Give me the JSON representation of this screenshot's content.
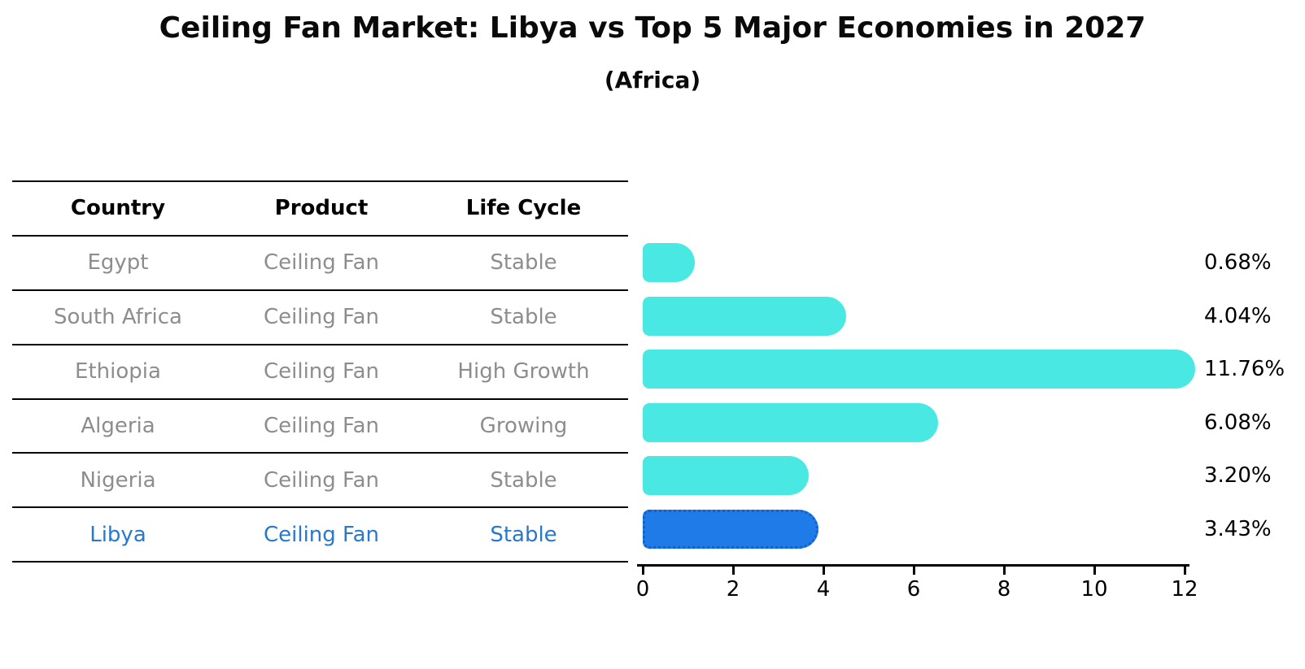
{
  "chart_data": {
    "type": "bar",
    "orientation": "horizontal",
    "title": "Ceiling Fan Market: Libya vs Top 5 Major Economies in 2027",
    "subtitle": "(Africa)",
    "categories": [
      "Egypt",
      "South Africa",
      "Ethiopia",
      "Algeria",
      "Nigeria",
      "Libya"
    ],
    "values": [
      0.68,
      4.04,
      11.76,
      6.08,
      3.2,
      3.43
    ],
    "value_labels": [
      "0.68%",
      "4.04%",
      "11.76%",
      "6.08%",
      "3.20%",
      "3.43%"
    ],
    "x_ticks": [
      0,
      2,
      4,
      6,
      8,
      10,
      12
    ],
    "xlim": [
      0,
      12
    ],
    "grid": false,
    "legend": false,
    "highlight_index": 5,
    "bar_color": "#4AE8E3",
    "highlight_bar_color": "#1E7BE8",
    "highlight_border_color": "#1261cc"
  },
  "table": {
    "headers": [
      "Country",
      "Product",
      "Life Cycle"
    ],
    "rows": [
      {
        "country": "Egypt",
        "product": "Ceiling Fan",
        "life_cycle": "Stable"
      },
      {
        "country": "South Africa",
        "product": "Ceiling Fan",
        "life_cycle": "Stable"
      },
      {
        "country": "Ethiopia",
        "product": "Ceiling Fan",
        "life_cycle": "High Growth"
      },
      {
        "country": "Algeria",
        "product": "Ceiling Fan",
        "life_cycle": "Growing"
      },
      {
        "country": "Nigeria",
        "product": "Ceiling Fan",
        "life_cycle": "Stable"
      },
      {
        "country": "Libya",
        "product": "Ceiling Fan",
        "life_cycle": "Stable"
      }
    ],
    "highlight_row": "Libya"
  },
  "colors": {
    "row_text": "#8d8d8d",
    "highlight_text": "#2878CD",
    "header_text": "#000000",
    "axis": "#000000",
    "background": "#ffffff"
  }
}
